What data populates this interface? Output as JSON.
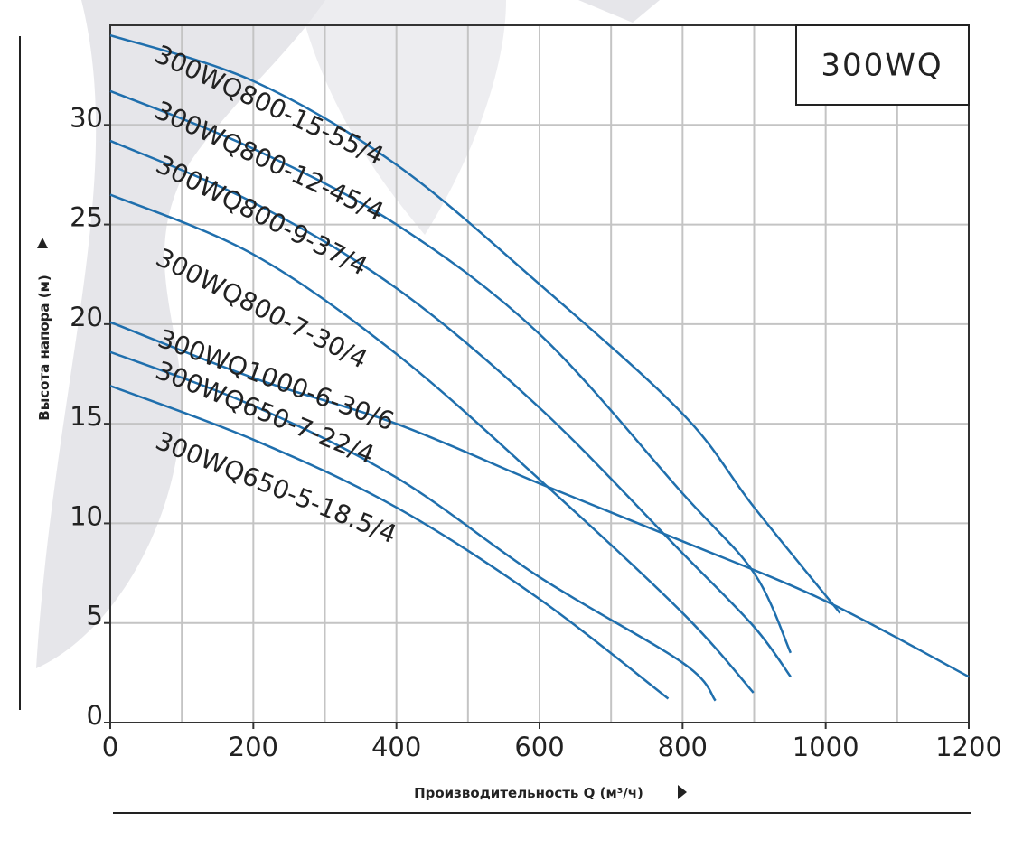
{
  "chart_data": {
    "type": "line",
    "title": "300WQ",
    "x_label": "Производительность Q (м³/ч)",
    "y_label": "Высота напора (м)",
    "xlim": [
      0,
      1200
    ],
    "xticks": [
      0,
      200,
      400,
      600,
      800,
      1000,
      1200
    ],
    "x_minor_grid": [
      100,
      300,
      500,
      700,
      900,
      1100
    ],
    "ylim": [
      0,
      35
    ],
    "yticks": [
      0,
      5,
      10,
      15,
      20,
      25,
      30
    ],
    "grid": true,
    "series": [
      {
        "name": "300WQ800-15-55/4",
        "color": "#1f6fad",
        "x": [
          0,
          200,
          400,
          600,
          800,
          900,
          1020
        ],
        "values": [
          34.5,
          32.2,
          28,
          22,
          15.5,
          10.8,
          5.5
        ]
      },
      {
        "name": "300WQ800-12-45/4",
        "color": "#1f6fad",
        "x": [
          0,
          200,
          400,
          600,
          800,
          900,
          951
        ],
        "values": [
          31.7,
          28.8,
          25,
          19.5,
          11.5,
          7.5,
          3.5
        ]
      },
      {
        "name": "300WQ800-9-37/4",
        "color": "#1f6fad",
        "x": [
          0,
          200,
          400,
          600,
          800,
          900,
          951
        ],
        "values": [
          29.2,
          26.1,
          21.8,
          15.8,
          8.5,
          4.8,
          2.3
        ]
      },
      {
        "name": "300WQ800-7-30/4",
        "color": "#1f6fad",
        "x": [
          0,
          200,
          400,
          600,
          800,
          899
        ],
        "values": [
          26.5,
          23.5,
          18.5,
          12.2,
          5.5,
          1.5
        ]
      },
      {
        "name": "300WQ1000-6-30/6",
        "color": "#1f6fad",
        "x": [
          0,
          200,
          400,
          600,
          800,
          1000,
          1200
        ],
        "values": [
          20.1,
          17.3,
          15,
          12,
          9.1,
          6.1,
          2.3
        ]
      },
      {
        "name": "300WQ650-7-22/4",
        "color": "#1f6fad",
        "x": [
          0,
          200,
          400,
          600,
          800,
          846
        ],
        "values": [
          18.6,
          15.9,
          12.3,
          7.3,
          3,
          1.1
        ]
      },
      {
        "name": "300WQ650-5-18.5/4",
        "color": "#1f6fad",
        "x": [
          0,
          200,
          400,
          600,
          780
        ],
        "values": [
          16.9,
          14.2,
          10.8,
          6.2,
          1.2
        ]
      }
    ]
  }
}
